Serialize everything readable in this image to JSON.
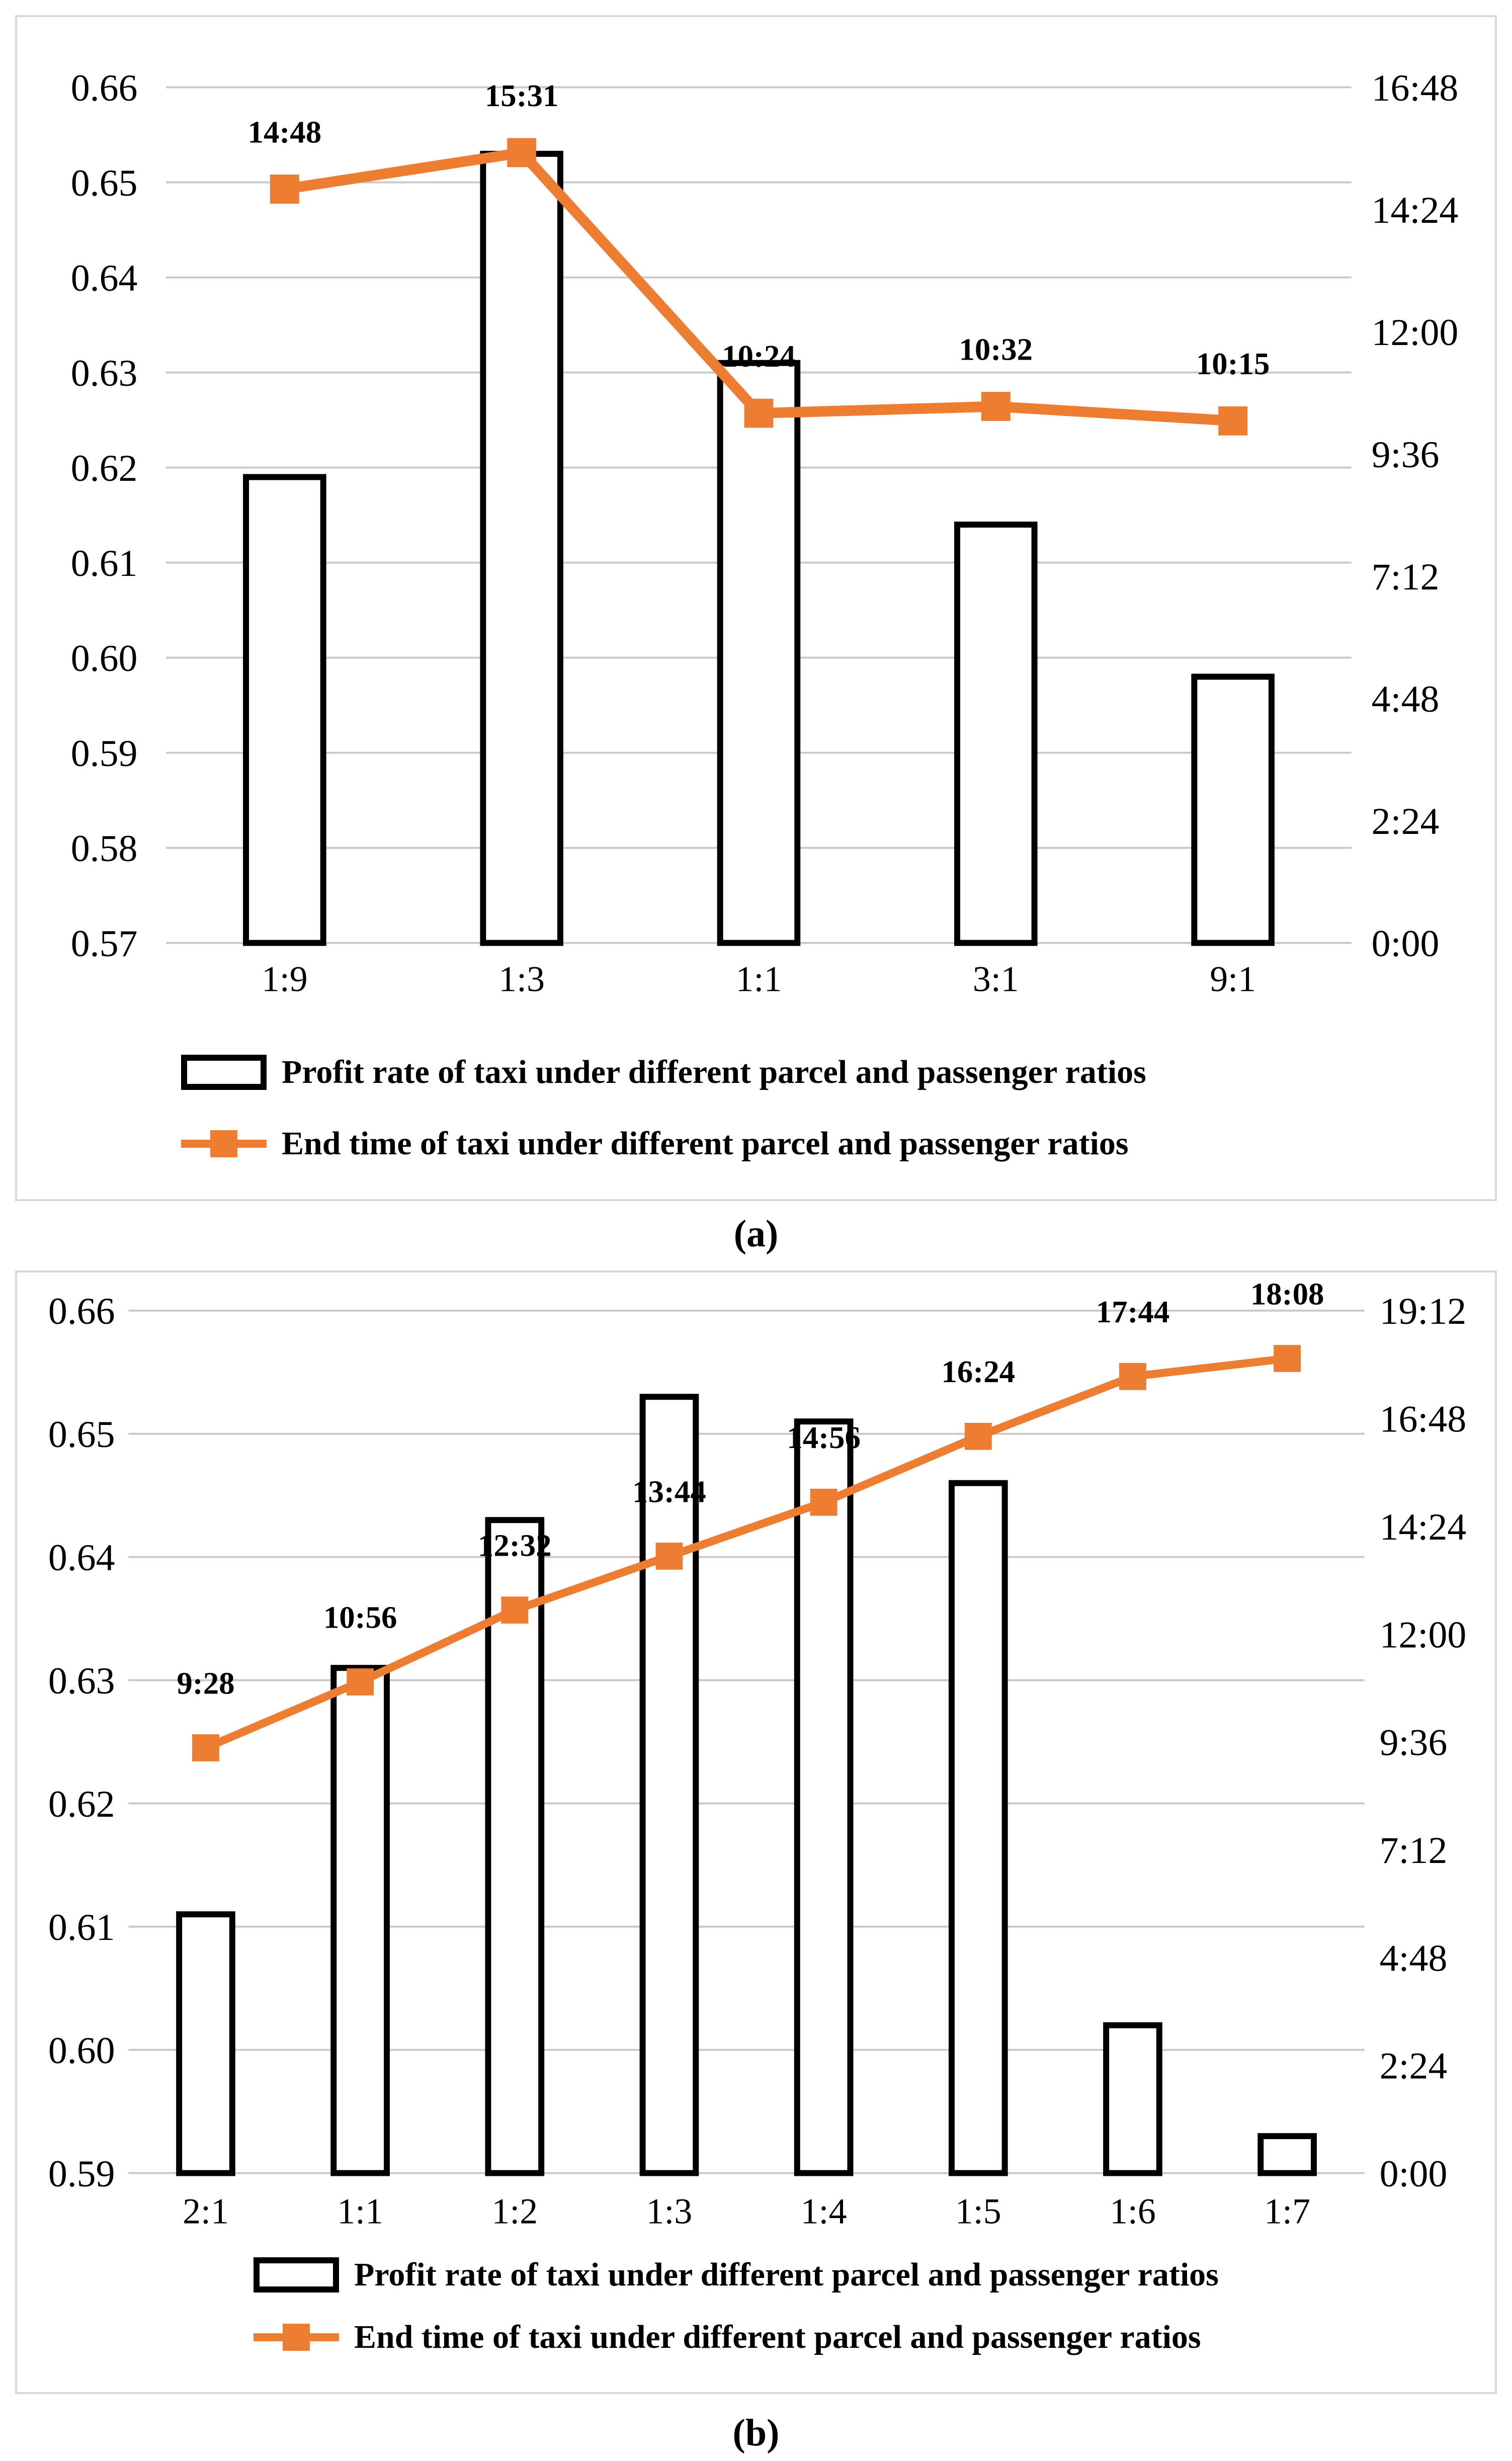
{
  "colors": {
    "accent_orange": "#ED7D31",
    "bar_fill": "#FFFFFF",
    "bar_stroke": "#000000",
    "gridline": "#C9C9C9",
    "panel_border": "#D9D9D9",
    "text": "#000000",
    "background": "#FFFFFF"
  },
  "chart_data": [
    {
      "panel": "a",
      "type": "bar+line",
      "caption": "(a)",
      "grid": "on",
      "legend_position": "bottom",
      "categories": [
        "1:9",
        "1:3",
        "1:1",
        "3:1",
        "9:1"
      ],
      "series": [
        {
          "name": "Profit rate of taxi under different parcel and passenger ratios",
          "type": "bar",
          "axis": "left",
          "values": [
            0.619,
            0.653,
            0.631,
            0.614,
            0.598
          ]
        },
        {
          "name": "End time of taxi under different parcel and passenger ratios",
          "type": "line",
          "axis": "right",
          "marker": "square",
          "values": [
            "14:48",
            "15:31",
            "10:24",
            "10:32",
            "10:15"
          ],
          "hours": [
            14.8,
            15.5167,
            10.4,
            10.5333,
            10.25
          ]
        }
      ],
      "left_axis": {
        "min": 0.57,
        "max": 0.66,
        "ticks": [
          "0.66",
          "0.65",
          "0.64",
          "0.63",
          "0.62",
          "0.61",
          "0.60",
          "0.59",
          "0.58",
          "0.57"
        ]
      },
      "right_axis": {
        "min_hours": 0,
        "max_hours": 16.8,
        "ticks": [
          "16:48",
          "14:24",
          "12:00",
          "9:36",
          "7:12",
          "4:48",
          "2:24",
          "0:00"
        ]
      }
    },
    {
      "panel": "b",
      "type": "bar+line",
      "caption": "(b)",
      "grid": "on",
      "legend_position": "bottom",
      "categories": [
        "2:1",
        "1:1",
        "1:2",
        "1:3",
        "1:4",
        "1:5",
        "1:6",
        "1:7"
      ],
      "series": [
        {
          "name": "Profit rate of taxi under different parcel and passenger ratios",
          "type": "bar",
          "axis": "left",
          "values": [
            0.611,
            0.631,
            0.643,
            0.653,
            0.651,
            0.646,
            0.602,
            0.593
          ]
        },
        {
          "name": "End time of taxi under different parcel and passenger ratios",
          "type": "line",
          "axis": "right",
          "marker": "square",
          "values": [
            "9:28",
            "10:56",
            "12:32",
            "13:44",
            "14:56",
            "16:24",
            "17:44",
            "18:08"
          ],
          "hours": [
            9.4667,
            10.9333,
            12.5333,
            13.7333,
            14.9333,
            16.4,
            17.7333,
            18.1333
          ]
        }
      ],
      "left_axis": {
        "min": 0.59,
        "max": 0.66,
        "ticks": [
          "0.66",
          "0.65",
          "0.64",
          "0.63",
          "0.62",
          "0.61",
          "0.60",
          "0.59"
        ]
      },
      "right_axis": {
        "min_hours": 0,
        "max_hours": 19.2,
        "ticks": [
          "19:12",
          "16:48",
          "14:24",
          "12:00",
          "9:36",
          "7:12",
          "4:48",
          "2:24",
          "0:00"
        ]
      }
    }
  ]
}
